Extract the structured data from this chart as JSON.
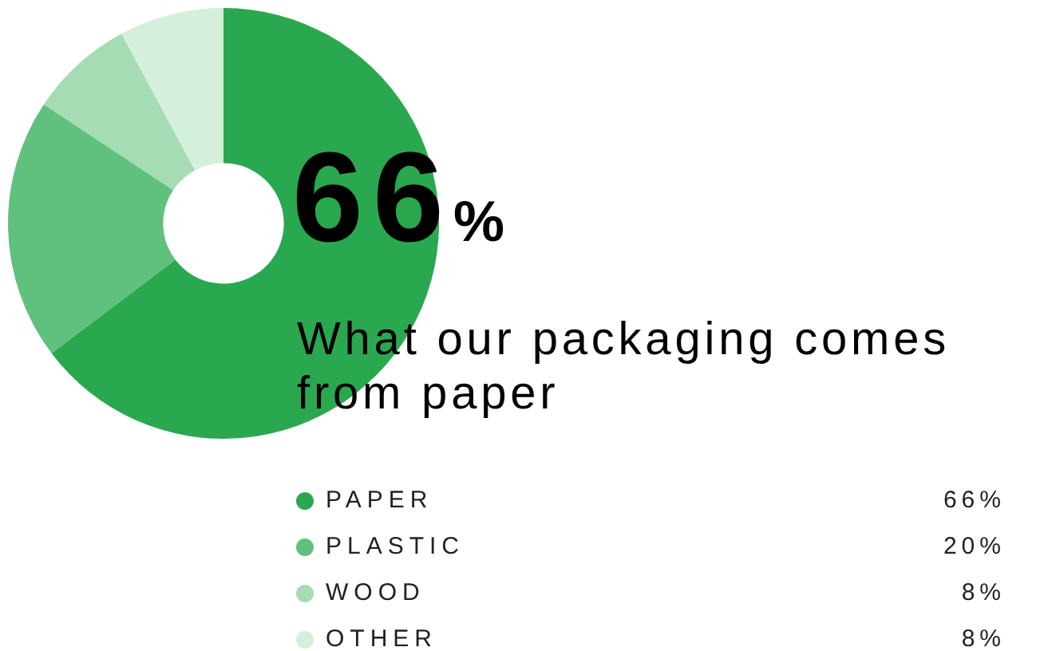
{
  "chart_data": {
    "type": "donut",
    "title": "66%",
    "subtitle": "What our packaging comes from paper",
    "categories": [
      "PAPER",
      "PLASTIC",
      "WOOD",
      "OTHER"
    ],
    "values": [
      66,
      20,
      8,
      8
    ],
    "value_labels": [
      "66%",
      "20%",
      "8%",
      "8%"
    ],
    "colors": [
      "#2aa84f",
      "#5fc17d",
      "#a5dcb3",
      "#d4efdc"
    ],
    "legend": "bottom right"
  }
}
